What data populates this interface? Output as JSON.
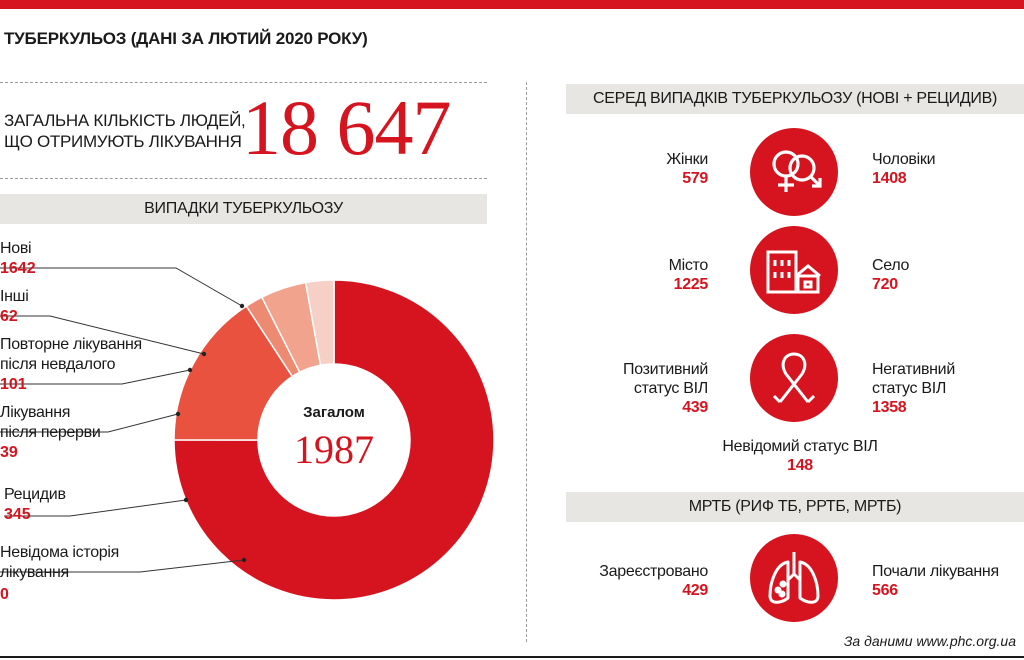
{
  "title": "ТУБЕРКУЛЬОЗ (ДАНІ ЗА ЛЮТИЙ 2020 РОКУ)",
  "total": {
    "label_line1": "ЗАГАЛЬНА КІЛЬКІСТЬ ЛЮДЕЙ,",
    "label_line2": "ЩО ОТРИМУЮТЬ ЛІКУВАННЯ",
    "value": "18 647"
  },
  "chart_data": {
    "type": "pie",
    "title": "ВИПАДКИ ТУБЕРКУЛЬОЗУ",
    "center_label": "Загалом",
    "center_value": "1987",
    "categories": [
      "Нові",
      "Інші",
      "Повторне лікування після невдалого",
      "Лікування після перерви",
      "Рецидив",
      "Невідома історія лікування"
    ],
    "values": [
      1642,
      62,
      101,
      39,
      345,
      0
    ],
    "colors": [
      "#d6141f",
      "#f6cfc7",
      "#f1a38e",
      "#ec8a72",
      "#e8523f",
      "#d6141f"
    ],
    "labels": [
      {
        "line1": "Нові",
        "line2": "",
        "value": "1642"
      },
      {
        "line1": "Інші",
        "line2": "",
        "value": "62"
      },
      {
        "line1": "Повторне лікування",
        "line2": "після невдалого",
        "value": "101"
      },
      {
        "line1": "Лікування",
        "line2": "після перерви",
        "value": "39"
      },
      {
        "line1": "Рецидив",
        "line2": "",
        "value": "345"
      },
      {
        "line1": "Невідома історія",
        "line2": "лікування",
        "value": "0"
      }
    ]
  },
  "right": {
    "header1": "СЕРЕД ВИПАДКІВ ТУБЕРКУЛЬОЗУ (НОВІ + РЕЦИДИВ)",
    "rows": [
      {
        "icon": "gender-icon",
        "left_label": "Жінки",
        "left_value": "579",
        "right_label": "Чоловіки",
        "right_value": "1408"
      },
      {
        "icon": "city-village-icon",
        "left_label": "Місто",
        "left_value": "1225",
        "right_label": "Село",
        "right_value": "720"
      },
      {
        "icon": "hiv-ribbon-icon",
        "left_label": "Позитивний статус ВІЛ",
        "left_line1": "Позитивний",
        "left_line2": "статус ВІЛ",
        "left_value": "439",
        "right_line1": "Негативний",
        "right_line2": "статус ВІЛ",
        "right_value": "1358"
      }
    ],
    "unknown_hiv_label": "Невідомий статус ВІЛ",
    "unknown_hiv_value": "148",
    "header2": "МРТБ (РИФ ТБ, РРТБ, МРТБ)",
    "mrtb": {
      "icon": "lungs-icon",
      "left_label": "Зареєстровано",
      "left_value": "429",
      "right_label": "Почали лікування",
      "right_value": "566"
    }
  },
  "source": "За даними www.phc.org.ua",
  "colors": {
    "accent": "#d6141f",
    "band": "#e8e6e2"
  }
}
